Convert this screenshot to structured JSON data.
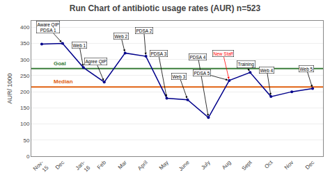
{
  "chart_data": {
    "type": "line",
    "title": "Run Chart of antibiotic usage rates (AUR) n=523",
    "y_label": "AUR/ 1000",
    "categories": [
      "Nov-\n15",
      "Dec",
      "Jan-\n16",
      "Feb",
      "Mar",
      "April",
      "May",
      "June",
      "July",
      "Aug",
      "Sept",
      "Oct",
      "Nov",
      "Dec"
    ],
    "values": [
      348,
      350,
      275,
      230,
      320,
      310,
      180,
      175,
      120,
      235,
      260,
      185,
      200,
      210
    ],
    "color": "#00008B",
    "marker": "circle",
    "reference_lines": [
      {
        "label": "Goal",
        "value": 272,
        "color": "#3a7d3a"
      },
      {
        "label": "Median",
        "value": 215,
        "color": "#e06010"
      }
    ],
    "annotations": [
      {
        "text": "Aware QIP\nPDSA 1",
        "index": 1,
        "color": "black"
      },
      {
        "text": "Web 1",
        "index": 2,
        "color": "black"
      },
      {
        "text": "Agree QIP",
        "index": 3,
        "color": "black"
      },
      {
        "text": "Web 2",
        "index": 4,
        "color": "black"
      },
      {
        "text": "PDSA 2",
        "index": 5,
        "color": "black"
      },
      {
        "text": "PDSA 3",
        "index": 6,
        "color": "black"
      },
      {
        "text": "Web 3",
        "index": 7,
        "color": "black"
      },
      {
        "text": "PDSA 4",
        "index": 8,
        "color": "black"
      },
      {
        "text": "PDSA 5",
        "index": 9,
        "color": "black"
      },
      {
        "text": "New Staff",
        "index": 9,
        "color": "red"
      },
      {
        "text": "Training",
        "index": 10,
        "color": "black"
      },
      {
        "text": "Web 4",
        "index": 11,
        "color": "black"
      },
      {
        "text": "Web 5",
        "index": 13,
        "color": "black"
      }
    ],
    "ylim": [
      0,
      420
    ],
    "yticks": [
      0,
      50,
      100,
      150,
      200,
      250,
      300,
      350,
      400
    ],
    "grid": true
  }
}
